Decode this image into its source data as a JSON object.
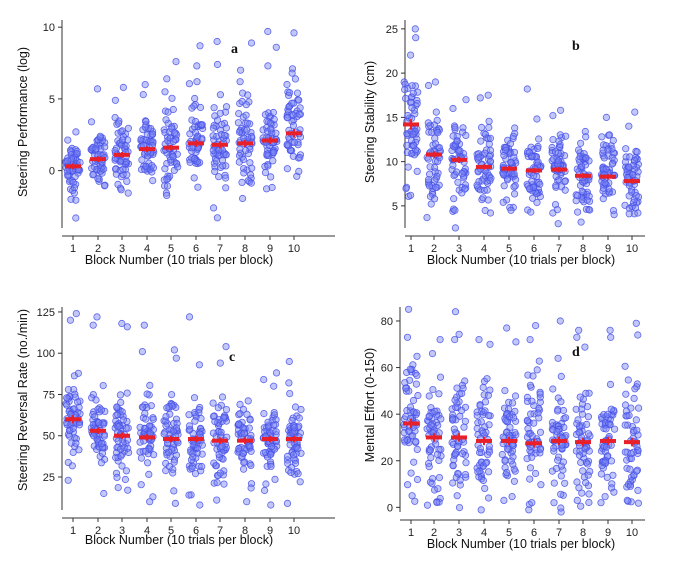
{
  "chart_data": [
    {
      "type": "scatter",
      "panel_label": "a",
      "title": "",
      "xlabel": "Block Number (10 trials per block)",
      "ylabel": "Steering Performance (log)",
      "categories": [
        "1",
        "2",
        "3",
        "4",
        "5",
        "6",
        "7",
        "8",
        "9",
        "10"
      ],
      "ylim": [
        -4,
        10.5
      ],
      "yticks": [
        0,
        5,
        10
      ],
      "means": [
        0.3,
        0.8,
        1.1,
        1.5,
        1.6,
        1.9,
        1.8,
        1.9,
        2.1,
        2.6
      ],
      "sems": [
        0.2,
        0.2,
        0.2,
        0.2,
        0.2,
        0.25,
        0.25,
        0.25,
        0.25,
        0.3
      ],
      "spread": [
        0.9,
        0.9,
        1.1,
        1.3,
        1.3,
        1.5,
        1.5,
        1.5,
        1.6,
        1.8
      ],
      "extremes": [
        [
          2.7,
          -3.3,
          -2.0
        ],
        [
          5.7,
          3.4
        ],
        [
          5.8,
          4.9
        ],
        [
          6.0,
          5.3
        ],
        [
          7.6,
          6.4
        ],
        [
          8.7,
          7.3,
          6.2
        ],
        [
          9.0,
          7.4,
          -2.6
        ],
        [
          8.9,
          7.0,
          6.2
        ],
        [
          9.7,
          8.6,
          7.3
        ],
        [
          9.6,
          7.1,
          6.8
        ]
      ],
      "n_points": 55
    },
    {
      "type": "scatter",
      "panel_label": "b",
      "title": "",
      "xlabel": "Block Number (10 trials per block)",
      "ylabel": "Steering Stability (cm)",
      "categories": [
        "1",
        "2",
        "3",
        "4",
        "5",
        "6",
        "7",
        "8",
        "9",
        "10"
      ],
      "ylim": [
        2.5,
        26
      ],
      "yticks": [
        5,
        10,
        15,
        20,
        25
      ],
      "means": [
        14.2,
        10.8,
        10.2,
        9.4,
        9.2,
        9.0,
        9.1,
        8.4,
        8.3,
        7.8
      ],
      "sems": [
        0.6,
        0.35,
        0.35,
        0.3,
        0.3,
        0.3,
        0.3,
        0.3,
        0.3,
        0.3
      ],
      "spread": [
        3.2,
        2.5,
        2.4,
        2.2,
        2.1,
        2.1,
        2.1,
        2.0,
        2.0,
        1.9
      ],
      "extremes": [
        [
          25.0,
          24.0,
          6.2
        ],
        [
          19.0,
          18.6,
          5.8
        ],
        [
          17.0,
          16.0,
          4.5
        ],
        [
          17.5,
          17.2,
          4.2
        ],
        [
          13.8,
          4.5
        ],
        [
          18.2,
          4.3
        ],
        [
          15.8,
          15.2,
          4.2
        ],
        [
          13.4,
          12.8,
          4.3
        ],
        [
          15.0,
          12.8,
          4.0
        ],
        [
          15.6,
          14.0,
          4.2
        ]
      ],
      "n_points": 55
    },
    {
      "type": "scatter",
      "panel_label": "c",
      "title": "",
      "xlabel": "Block Number (10 trials per block)",
      "ylabel": "Steering Reversal Rate (no./min)",
      "categories": [
        "1",
        "2",
        "3",
        "4",
        "5",
        "6",
        "7",
        "8",
        "9",
        "10"
      ],
      "ylim": [
        5,
        128
      ],
      "yticks": [
        25,
        50,
        75,
        100,
        125
      ],
      "means": [
        60,
        53,
        50,
        49,
        48,
        48,
        47,
        47,
        48,
        48
      ],
      "sems": [
        2.5,
        2.0,
        2.0,
        2.0,
        2.0,
        2.0,
        2.0,
        2.0,
        2.0,
        2.0
      ],
      "spread": [
        13,
        12,
        12,
        12,
        12,
        12,
        12,
        12,
        12,
        11
      ],
      "extremes": [
        [
          124,
          120,
          23
        ],
        [
          122,
          117,
          15
        ],
        [
          118,
          116,
          17
        ],
        [
          117,
          101,
          10
        ],
        [
          102,
          97,
          9
        ],
        [
          122,
          93,
          8
        ],
        [
          104,
          94,
          11
        ],
        [
          69,
          10
        ],
        [
          84,
          80,
          8
        ],
        [
          95,
          82,
          9
        ]
      ],
      "n_points": 55
    },
    {
      "type": "scatter",
      "panel_label": "d",
      "title": "",
      "xlabel": "Block Number (10 trials per block)",
      "ylabel": "Mental Effort (0-150)",
      "categories": [
        "1",
        "2",
        "3",
        "4",
        "5",
        "6",
        "7",
        "8",
        "9",
        "10"
      ],
      "ylim": [
        -2,
        86
      ],
      "yticks": [
        0,
        20,
        40,
        60,
        80
      ],
      "means": [
        36,
        30,
        30,
        28.5,
        28.5,
        27.5,
        28.5,
        28.0,
        28.5,
        28.0
      ],
      "sems": [
        2.0,
        1.8,
        1.8,
        1.8,
        1.8,
        1.8,
        1.8,
        1.8,
        1.8,
        1.8
      ],
      "spread": [
        14,
        13,
        13,
        13,
        13,
        13,
        13,
        13,
        13,
        13
      ],
      "extremes": [
        [
          85,
          73,
          5
        ],
        [
          72,
          66,
          8
        ],
        [
          84,
          72,
          5
        ],
        [
          72,
          70,
          4
        ],
        [
          77,
          71,
          3
        ],
        [
          78,
          72,
          2
        ],
        [
          80,
          64,
          2
        ],
        [
          76,
          73,
          3
        ],
        [
          76,
          73,
          2
        ],
        [
          79,
          74,
          3
        ]
      ],
      "n_points": 55
    }
  ],
  "colors": {
    "point_fill": "rgba(120,130,245,0.45)",
    "point_stroke": "#4650e6",
    "mean_color": "#e8202a",
    "axis_color": "#333333"
  }
}
